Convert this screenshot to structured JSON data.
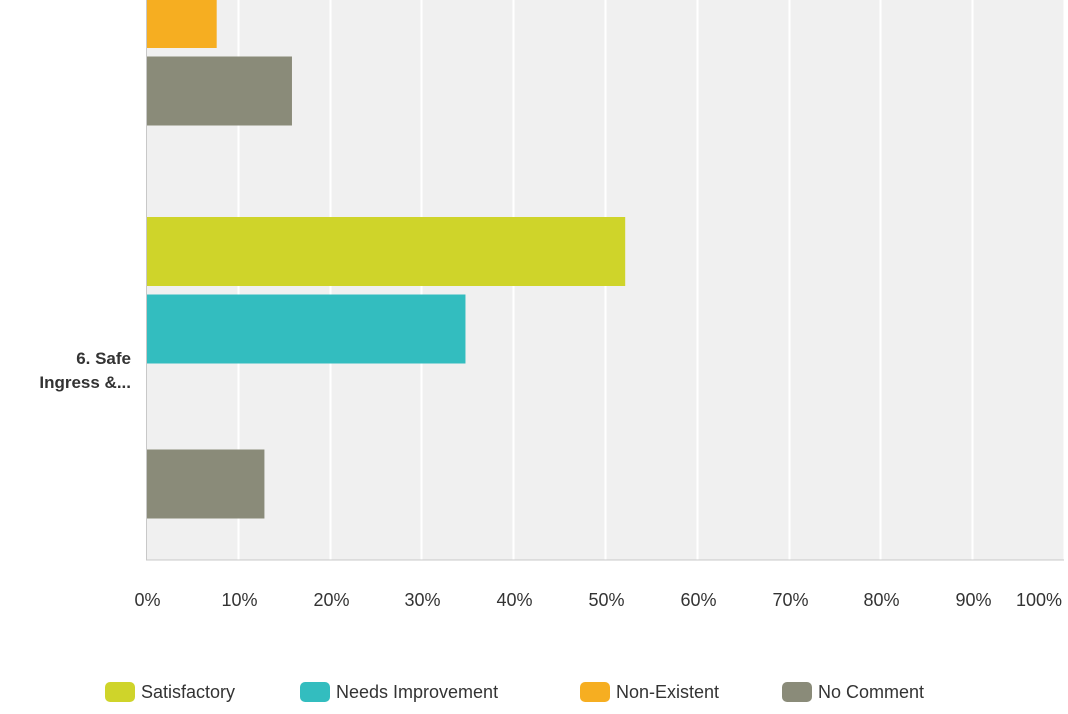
{
  "chart_data": {
    "type": "bar",
    "orientation": "horizontal",
    "title": "",
    "xlabel": "",
    "ylabel": "",
    "xlim": [
      0,
      100
    ],
    "x_ticks": [
      "0%",
      "10%",
      "20%",
      "30%",
      "40%",
      "50%",
      "60%",
      "70%",
      "80%",
      "90%",
      "100%"
    ],
    "grid": true,
    "legend_position": "bottom",
    "categories": [
      "",
      "6. Safe Ingress &..."
    ],
    "category_lines": [
      [],
      [
        "6. Safe",
        "Ingress &..."
      ]
    ],
    "series": [
      {
        "name": "Satisfactory",
        "color": "#CFD42A",
        "values": [
          null,
          52.2
        ]
      },
      {
        "name": "Needs Improvement",
        "color": "#33BDBF",
        "values": [
          null,
          34.8
        ]
      },
      {
        "name": "Non-Existent",
        "color": "#F6AE21",
        "values": [
          7.7,
          0
        ]
      },
      {
        "name": "No Comment",
        "color": "#8A8B79",
        "values": [
          15.9,
          12.9
        ]
      }
    ]
  }
}
